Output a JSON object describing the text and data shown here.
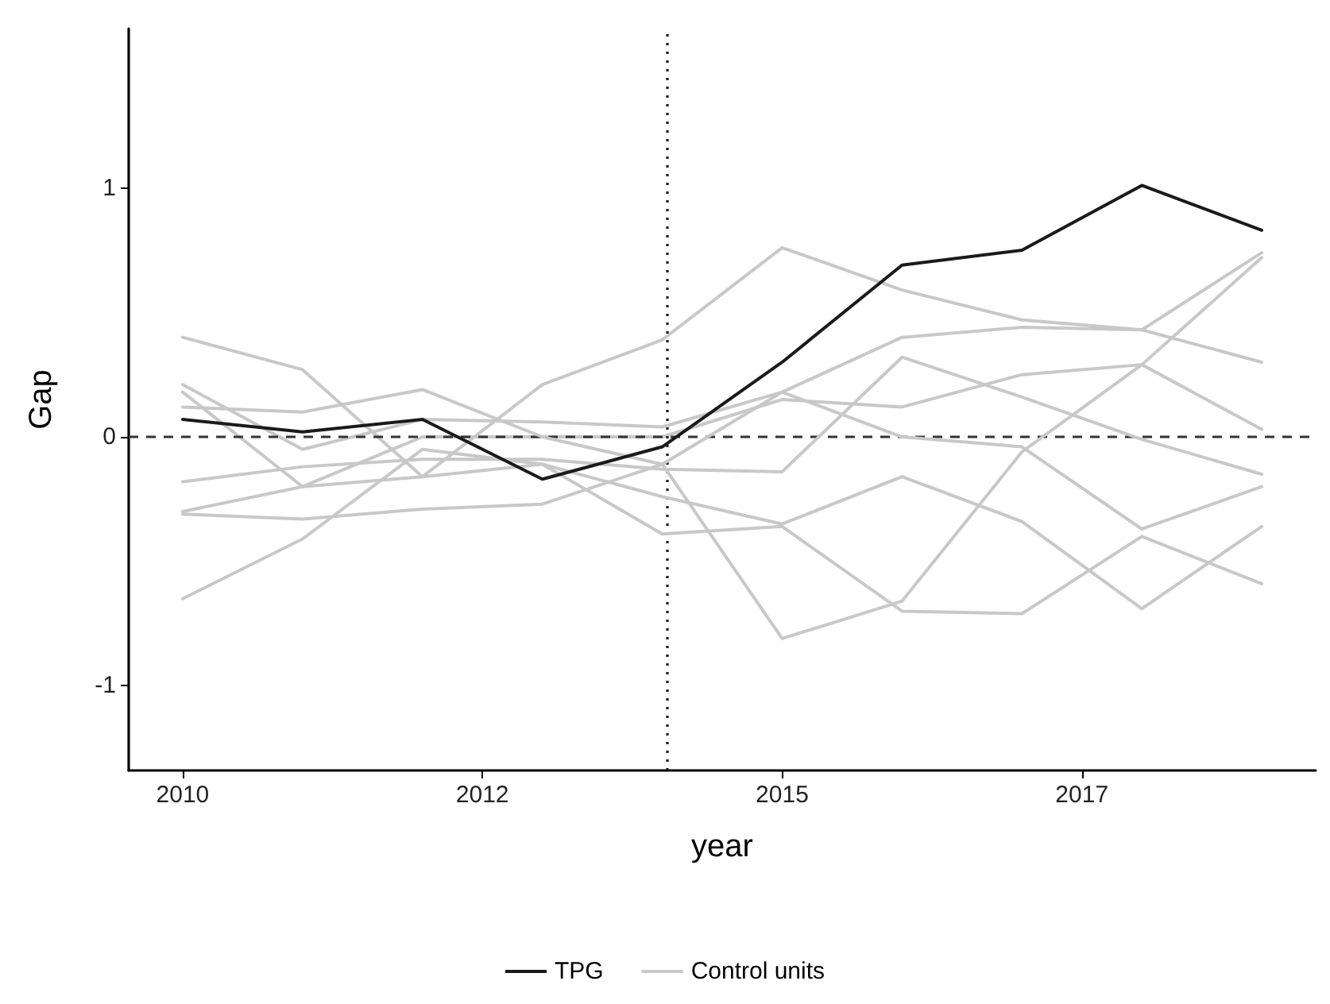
{
  "chart_data": {
    "type": "line",
    "xlabel": "year",
    "ylabel": "Gap",
    "x": [
      2010,
      2011,
      2012,
      2013,
      2014,
      2015,
      2016,
      2017,
      2018,
      2019
    ],
    "xlim": [
      2009.55,
      2019.45
    ],
    "xticks": [
      2010,
      {
        "value": 2012.5,
        "label": "2012"
      },
      2015,
      {
        "value": 2017.5,
        "label": "2017"
      }
    ],
    "ylim": [
      -1.34,
      1.64
    ],
    "yticks": [
      -1,
      0,
      1
    ],
    "grid": false,
    "legend": "bottom",
    "line_style": "solid",
    "series": [
      {
        "name": "Control units",
        "color": "#c8c8c8",
        "values": [
          0.4,
          0.27,
          -0.16,
          0.21,
          0.39,
          0.76,
          0.59,
          0.47,
          0.43,
          0.3
        ]
      },
      {
        "color": "#c8c8c8",
        "values": [
          0.21,
          -0.05,
          0.07,
          0.06,
          0.04,
          0.18,
          0.4,
          0.44,
          0.43,
          0.74
        ]
      },
      {
        "color": "#c8c8c8",
        "values": [
          0.18,
          -0.2,
          0.0,
          0.0,
          0.0,
          0.15,
          0.12,
          0.25,
          0.29,
          0.03
        ]
      },
      {
        "color": "#c8c8c8",
        "values": [
          -0.18,
          -0.12,
          -0.09,
          -0.09,
          -0.13,
          -0.14,
          0.32,
          0.16,
          -0.01,
          -0.15
        ]
      },
      {
        "color": "#c8c8c8",
        "values": [
          0.12,
          0.1,
          0.19,
          0.0,
          -0.11,
          0.18,
          0.0,
          -0.04,
          -0.37,
          -0.2
        ]
      },
      {
        "color": "#c8c8c8",
        "values": [
          -0.3,
          -0.2,
          -0.16,
          -0.11,
          -0.24,
          -0.35,
          -0.16,
          -0.34,
          -0.69,
          -0.36
        ]
      },
      {
        "color": "#c8c8c8",
        "values": [
          -0.31,
          -0.33,
          -0.29,
          -0.27,
          -0.11,
          -0.81,
          -0.66,
          -0.06,
          0.29,
          0.72
        ]
      },
      {
        "color": "#c8c8c8",
        "values": [
          -0.65,
          -0.41,
          -0.05,
          -0.11,
          -0.39,
          -0.36,
          -0.7,
          -0.71,
          -0.4,
          -0.59
        ]
      },
      {
        "name": "TPG",
        "color": "#1a1a1a",
        "values": [
          0.07,
          0.02,
          0.07,
          -0.17,
          -0.04,
          0.3,
          0.69,
          0.75,
          1.01,
          0.83
        ]
      }
    ],
    "ref_lines": [
      {
        "axis": "x",
        "value": 2014.04,
        "label": null,
        "color": "#1a1a1a",
        "line_style": "dotted"
      },
      {
        "axis": "y",
        "value": 0,
        "label": null,
        "color": "#333333",
        "line_style": "dashed"
      }
    ]
  }
}
